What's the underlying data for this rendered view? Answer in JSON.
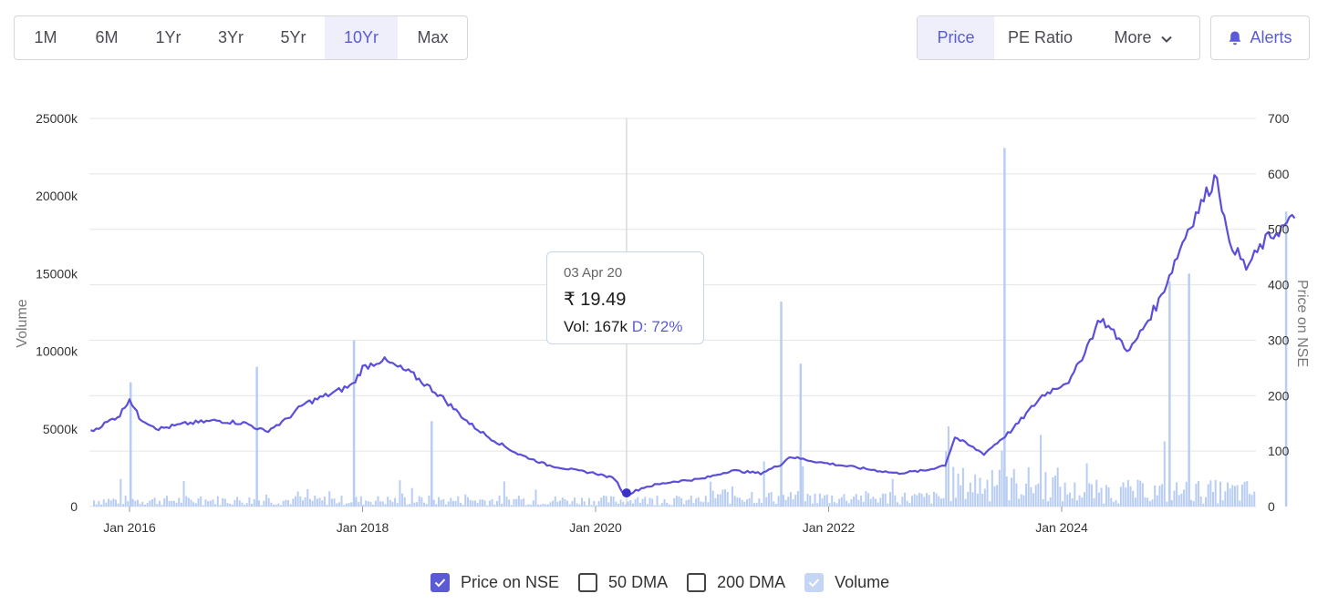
{
  "toolbar": {
    "ranges": [
      {
        "label": "1M",
        "active": false
      },
      {
        "label": "6M",
        "active": false
      },
      {
        "label": "1Yr",
        "active": false
      },
      {
        "label": "3Yr",
        "active": false
      },
      {
        "label": "5Yr",
        "active": false
      },
      {
        "label": "10Yr",
        "active": true
      },
      {
        "label": "Max",
        "active": false
      }
    ],
    "views": [
      {
        "label": "Price",
        "active": true
      },
      {
        "label": "PE Ratio",
        "active": false
      },
      {
        "label": "More",
        "active": false
      }
    ],
    "alerts_label": "Alerts"
  },
  "tooltip": {
    "date": "03 Apr 20",
    "price": "₹ 19.49",
    "vol_label": "Vol: 167k",
    "d_label": "D: 72%"
  },
  "legend": [
    {
      "label": "Price on NSE",
      "checked": true
    },
    {
      "label": "50 DMA",
      "checked": false
    },
    {
      "label": "200 DMA",
      "checked": false
    },
    {
      "label": "Volume",
      "checked": true
    }
  ],
  "colors": {
    "price_line": "#5b4fd9",
    "volume_bar": "#b8cdf3",
    "accent": "#5b5bd6",
    "grid": "#e5e5e5"
  },
  "chart_data": {
    "type": "line",
    "xlabel": "",
    "ylabel": "Volume",
    "y2label": "Price on NSE",
    "x_ticks": [
      "Jan 2016",
      "Jan 2018",
      "Jan 2020",
      "Jan 2022",
      "Jan 2024"
    ],
    "y_ticks": [
      "0",
      "5000k",
      "10000k",
      "15000k",
      "20000k",
      "25000k"
    ],
    "y2_ticks": [
      "0",
      "100",
      "200",
      "300",
      "400",
      "500",
      "600",
      "700"
    ],
    "ylim": [
      0,
      25000
    ],
    "y2lim": [
      0,
      700
    ],
    "grid": true,
    "legend_position": "bottom",
    "series": [
      {
        "name": "Price on NSE",
        "axis": "right",
        "points": [
          [
            "2015-09",
            135
          ],
          [
            "2015-11",
            155
          ],
          [
            "2015-12",
            165
          ],
          [
            "2016-01",
            195
          ],
          [
            "2016-02",
            160
          ],
          [
            "2016-04",
            140
          ],
          [
            "2016-07",
            150
          ],
          [
            "2016-10",
            155
          ],
          [
            "2017-01",
            150
          ],
          [
            "2017-03",
            135
          ],
          [
            "2017-05",
            155
          ],
          [
            "2017-07",
            185
          ],
          [
            "2017-10",
            205
          ],
          [
            "2017-12",
            220
          ],
          [
            "2018-01",
            250
          ],
          [
            "2018-03",
            265
          ],
          [
            "2018-06",
            240
          ],
          [
            "2018-09",
            200
          ],
          [
            "2018-12",
            150
          ],
          [
            "2019-02",
            125
          ],
          [
            "2019-05",
            95
          ],
          [
            "2019-08",
            75
          ],
          [
            "2019-11",
            65
          ],
          [
            "2020-01",
            60
          ],
          [
            "2020-03",
            50
          ],
          [
            "2020-04",
            19.49
          ],
          [
            "2020-06",
            35
          ],
          [
            "2020-09",
            45
          ],
          [
            "2020-12",
            50
          ],
          [
            "2021-03",
            65
          ],
          [
            "2021-06",
            60
          ],
          [
            "2021-08",
            75
          ],
          [
            "2021-09",
            90
          ],
          [
            "2021-12",
            80
          ],
          [
            "2022-04",
            70
          ],
          [
            "2022-08",
            60
          ],
          [
            "2022-11",
            65
          ],
          [
            "2023-01",
            75
          ],
          [
            "2023-02",
            125
          ],
          [
            "2023-05",
            95
          ],
          [
            "2023-08",
            140
          ],
          [
            "2023-11",
            200
          ],
          [
            "2024-02",
            230
          ],
          [
            "2024-05",
            340
          ],
          [
            "2024-08",
            280
          ],
          [
            "2024-11",
            370
          ],
          [
            "2025-02",
            500
          ],
          [
            "2025-05",
            600
          ],
          [
            "2025-06",
            490
          ],
          [
            "2025-08",
            430
          ],
          [
            "2025-10",
            480
          ],
          [
            "2026-01",
            520
          ]
        ]
      },
      {
        "name": "Volume",
        "axis": "left",
        "spikes": [
          [
            "2016-01",
            8000
          ],
          [
            "2017-02",
            9000
          ],
          [
            "2017-12",
            10700
          ],
          [
            "2018-08",
            5500
          ],
          [
            "2021-08",
            13200
          ],
          [
            "2021-10",
            9200
          ],
          [
            "2023-07",
            23100
          ],
          [
            "2024-12",
            14500
          ],
          [
            "2025-02",
            15000
          ],
          [
            "2025-12",
            19000
          ]
        ]
      }
    ],
    "highlight": {
      "date": "2020-04-03",
      "price": 19.49,
      "volume_k": 167
    }
  }
}
